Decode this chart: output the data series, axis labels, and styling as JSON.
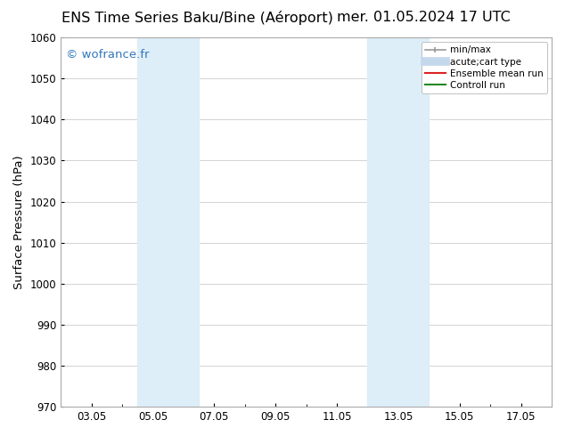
{
  "title_left": "ENS Time Series Baku/Bine (Aéroport)",
  "title_right": "mer. 01.05.2024 17 UTC",
  "ylabel": "Surface Pressure (hPa)",
  "ylim": [
    970,
    1060
  ],
  "yticks": [
    970,
    980,
    990,
    1000,
    1010,
    1020,
    1030,
    1040,
    1050,
    1060
  ],
  "xtick_labels": [
    "03.05",
    "05.05",
    "07.05",
    "09.05",
    "11.05",
    "13.05",
    "15.05",
    "17.05"
  ],
  "xtick_positions": [
    2,
    4,
    6,
    8,
    10,
    12,
    14,
    16
  ],
  "xlim": [
    1,
    17
  ],
  "watermark": "© wofrance.fr",
  "watermark_color": "#3377bb",
  "shaded_regions": [
    {
      "xmin": 3.5,
      "xmax": 5.5
    },
    {
      "xmin": 11.0,
      "xmax": 13.0
    }
  ],
  "shade_color": "#ddeef8",
  "background_color": "#ffffff",
  "grid_color": "#cccccc",
  "legend_entries": [
    {
      "label": "min/max",
      "color": "#999999",
      "lw": 1.2,
      "type": "errbar"
    },
    {
      "label": "acute;cart type",
      "color": "#c5d8eb",
      "lw": 7,
      "type": "line"
    },
    {
      "label": "Ensemble mean run",
      "color": "#dd2222",
      "lw": 1.5,
      "type": "line"
    },
    {
      "label": "Controll run",
      "color": "#228822",
      "lw": 1.5,
      "type": "line"
    }
  ],
  "title_fontsize": 11.5,
  "tick_fontsize": 8.5,
  "label_fontsize": 9.5,
  "watermark_fontsize": 9.5,
  "legend_fontsize": 7.5
}
